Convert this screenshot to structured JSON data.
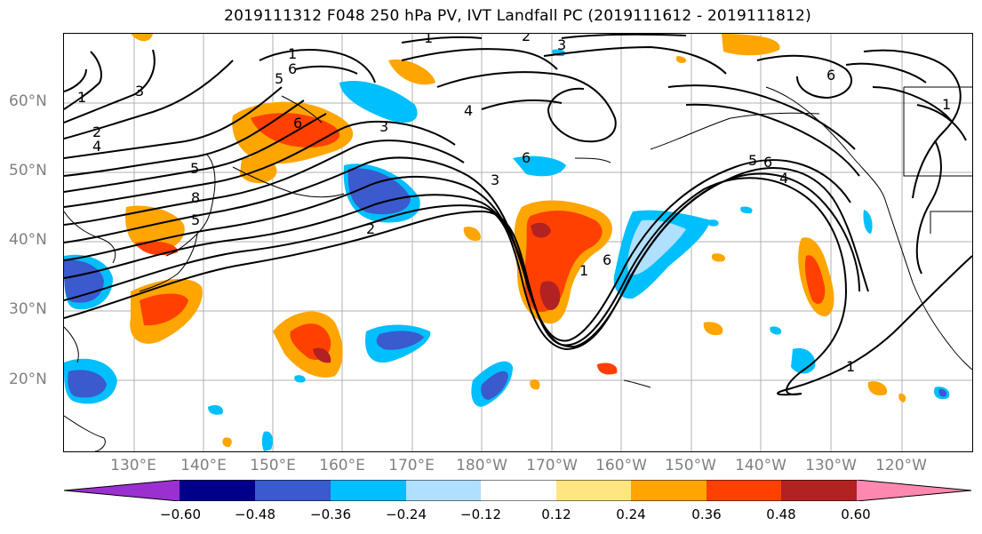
{
  "title": "2019111312 F048 250 hPa PV, IVT Landfall PC (2019111612 - 2019111812)",
  "lat_labels": [
    "60°N",
    "50°N",
    "40°N",
    "30°N",
    "20°N"
  ],
  "lon_labels": [
    "130°E",
    "140°E",
    "150°E",
    "160°E",
    "170°E",
    "180°W",
    "170°W",
    "160°W",
    "150°W",
    "140°W",
    "130°W",
    "120°W"
  ],
  "colorbar": {
    "tick_labels": [
      "−0.60",
      "−0.48",
      "−0.36",
      "−0.24",
      "−0.12",
      "0.12",
      "0.24",
      "0.36",
      "0.48",
      "0.60"
    ],
    "colors": [
      "#9b30d0",
      "#00008b",
      "#3a5acd",
      "#00bfff",
      "#b0e0ff",
      "#ffffff",
      "#ffe680",
      "#ffa500",
      "#ff4000",
      "#b22222",
      "#ff88b0"
    ]
  },
  "contour_labels": [
    "1",
    "1",
    "3",
    "2",
    "4",
    "5",
    "6",
    "1",
    "3",
    "2",
    "6",
    "3",
    "4",
    "3",
    "6",
    "8",
    "5",
    "2",
    "1",
    "6",
    "5",
    "5",
    "6",
    "4",
    "1",
    "1",
    "6"
  ],
  "fill_colors": {
    "yellow": "#ffe680",
    "orange": "#ffa500",
    "red": "#ff4000",
    "darkred": "#b22222",
    "lightblue": "#b0e0ff",
    "cyan": "#00bfff",
    "blue": "#3a5acd"
  }
}
